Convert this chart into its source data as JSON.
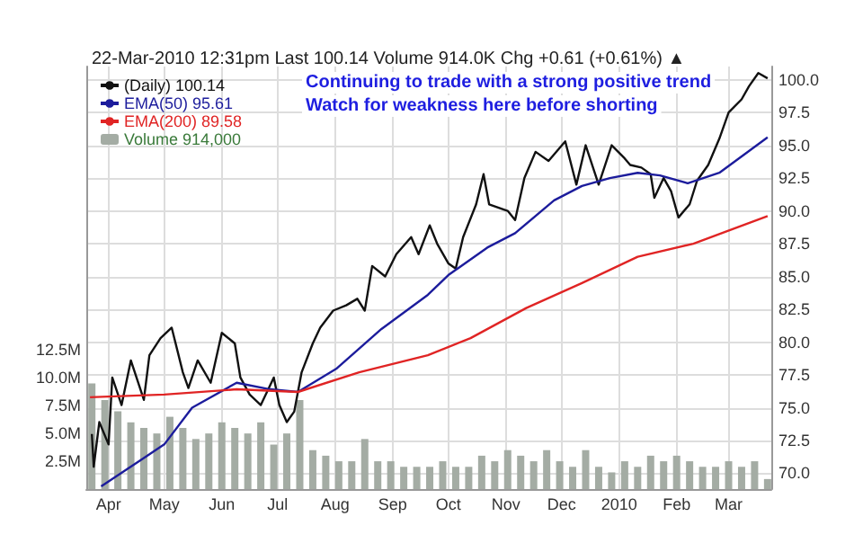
{
  "chart_data": {
    "type": "line",
    "subtitle": "22-Mar-2010 12:31pm Last 100.14 Volume 914.0K Chg +0.61 (+0.61%) ▲",
    "annotations": [
      "Continuing to trade with a strong positive trend",
      "Watch for weakness here before shorting"
    ],
    "xlim": [
      "2009-03-20",
      "2010-03-24"
    ],
    "xticks": [
      {
        "value": "2009-04-01",
        "label": "Apr"
      },
      {
        "value": "2009-05-01",
        "label": "May"
      },
      {
        "value": "2009-06-01",
        "label": "Jun"
      },
      {
        "value": "2009-07-01",
        "label": "Jul"
      },
      {
        "value": "2009-08-01",
        "label": "Aug"
      },
      {
        "value": "2009-09-01",
        "label": "Sep"
      },
      {
        "value": "2009-10-01",
        "label": "Oct"
      },
      {
        "value": "2009-11-01",
        "label": "Nov"
      },
      {
        "value": "2009-12-01",
        "label": "Dec"
      },
      {
        "value": "2010-01-01",
        "label": "2010"
      },
      {
        "value": "2010-02-01",
        "label": "Feb"
      },
      {
        "value": "2010-03-01",
        "label": "Mar"
      }
    ],
    "ylim": [
      68.8,
      101
    ],
    "yticks": [
      {
        "value": 70,
        "label": "70.0"
      },
      {
        "value": 72.5,
        "label": "72.5"
      },
      {
        "value": 75,
        "label": "75.0"
      },
      {
        "value": 77.5,
        "label": "77.5"
      },
      {
        "value": 80,
        "label": "80.0"
      },
      {
        "value": 82.5,
        "label": "82.5"
      },
      {
        "value": 85,
        "label": "85.0"
      },
      {
        "value": 87.5,
        "label": "87.5"
      },
      {
        "value": 90,
        "label": "90.0"
      },
      {
        "value": 92.5,
        "label": "92.5"
      },
      {
        "value": 95,
        "label": "95.0"
      },
      {
        "value": 97.5,
        "label": "97.5"
      },
      {
        "value": 100,
        "label": "100.0"
      }
    ],
    "y2lim": [
      0,
      38
    ],
    "y2ticks": [
      {
        "value": 2.5,
        "label": "2.5M"
      },
      {
        "value": 5,
        "label": "5.0M"
      },
      {
        "value": 7.5,
        "label": "7.5M"
      },
      {
        "value": 10,
        "label": "10.0M"
      },
      {
        "value": 12.5,
        "label": "12.5M"
      }
    ],
    "grid": true,
    "legend": "top left",
    "marker": "none",
    "line_style": "solid",
    "series": [
      {
        "name": "Volume 914,000",
        "type": "bar",
        "axis": "y2",
        "color": "#a4aca4",
        "x": [
          "2009-03-23",
          "2009-03-30",
          "2009-04-06",
          "2009-04-13",
          "2009-04-20",
          "2009-04-27",
          "2009-05-04",
          "2009-05-11",
          "2009-05-18",
          "2009-05-25",
          "2009-06-01",
          "2009-06-08",
          "2009-06-15",
          "2009-06-22",
          "2009-06-29",
          "2009-07-06",
          "2009-07-13",
          "2009-07-20",
          "2009-07-27",
          "2009-08-03",
          "2009-08-10",
          "2009-08-17",
          "2009-08-24",
          "2009-08-31",
          "2009-09-07",
          "2009-09-14",
          "2009-09-21",
          "2009-09-28",
          "2009-10-05",
          "2009-10-12",
          "2009-10-19",
          "2009-10-26",
          "2009-11-02",
          "2009-11-09",
          "2009-11-16",
          "2009-11-23",
          "2009-11-30",
          "2009-12-07",
          "2009-12-14",
          "2009-12-21",
          "2009-12-28",
          "2010-01-04",
          "2010-01-11",
          "2010-01-18",
          "2010-01-25",
          "2010-02-01",
          "2010-02-08",
          "2010-02-15",
          "2010-02-22",
          "2010-03-01",
          "2010-03-08",
          "2010-03-15",
          "2010-03-22"
        ],
        "values": [
          9.5,
          8,
          7,
          6,
          5.5,
          5,
          6.5,
          5.5,
          4.5,
          5,
          6,
          5.5,
          5,
          6,
          4,
          5,
          8,
          3.5,
          3,
          2.5,
          2.5,
          4.5,
          2.5,
          2.5,
          2,
          2,
          2,
          2.5,
          2,
          2,
          3,
          2.5,
          3.5,
          3,
          2.5,
          3.5,
          2.5,
          2,
          3.5,
          2,
          1.5,
          2.5,
          2,
          3,
          2.5,
          3,
          2.5,
          2,
          2,
          2.5,
          2,
          2.5,
          0.9
        ]
      },
      {
        "name": "(Daily) 100.14",
        "color": "#111111",
        "x": [
          "2009-03-23",
          "2009-03-24",
          "2009-03-27",
          "2009-04-01",
          "2009-04-03",
          "2009-04-08",
          "2009-04-13",
          "2009-04-20",
          "2009-04-23",
          "2009-04-29",
          "2009-05-05",
          "2009-05-11",
          "2009-05-14",
          "2009-05-19",
          "2009-05-26",
          "2009-06-01",
          "2009-06-08",
          "2009-06-11",
          "2009-06-16",
          "2009-06-22",
          "2009-06-29",
          "2009-07-02",
          "2009-07-06",
          "2009-07-10",
          "2009-07-14",
          "2009-07-20",
          "2009-07-24",
          "2009-07-31",
          "2009-08-07",
          "2009-08-13",
          "2009-08-17",
          "2009-08-21",
          "2009-08-28",
          "2009-09-03",
          "2009-09-11",
          "2009-09-15",
          "2009-09-21",
          "2009-09-25",
          "2009-10-01",
          "2009-10-05",
          "2009-10-09",
          "2009-10-16",
          "2009-10-20",
          "2009-10-23",
          "2009-11-02",
          "2009-11-06",
          "2009-11-11",
          "2009-11-17",
          "2009-11-24",
          "2009-12-03",
          "2009-12-09",
          "2009-12-14",
          "2009-12-21",
          "2009-12-28",
          "2010-01-04",
          "2010-01-07",
          "2010-01-13",
          "2010-01-18",
          "2010-01-20",
          "2010-01-25",
          "2010-01-29",
          "2010-02-02",
          "2010-02-08",
          "2010-02-12",
          "2010-02-18",
          "2010-02-24",
          "2010-03-01",
          "2010-03-08",
          "2010-03-12",
          "2010-03-17",
          "2010-03-22"
        ],
        "values": [
          73.0,
          70.5,
          73.9,
          72.2,
          77.3,
          75.2,
          78.6,
          75.6,
          79.0,
          80.3,
          81.1,
          77.7,
          76.5,
          78.6,
          76.9,
          80.7,
          79.9,
          77.3,
          76.0,
          75.2,
          77.3,
          75.2,
          73.9,
          74.7,
          77.7,
          79.9,
          81.1,
          82.4,
          82.8,
          83.3,
          82.4,
          85.8,
          85.0,
          86.7,
          88.0,
          86.7,
          88.9,
          87.5,
          86.0,
          85.6,
          88.0,
          90.5,
          92.8,
          90.5,
          90.0,
          89.3,
          92.5,
          94.5,
          93.8,
          95.3,
          92.0,
          95.0,
          92.0,
          95.0,
          94.0,
          93.5,
          93.3,
          92.8,
          91.0,
          92.5,
          91.5,
          89.5,
          90.5,
          92.3,
          93.5,
          95.5,
          97.5,
          98.5,
          99.5,
          100.5,
          100.1
        ]
      },
      {
        "name": "EMA(50) 95.61",
        "color": "#1c1c9c",
        "x": [
          "2009-03-28",
          "2009-05-01",
          "2009-05-16",
          "2009-06-09",
          "2009-06-27",
          "2009-07-12",
          "2009-08-02",
          "2009-08-26",
          "2009-09-20",
          "2009-10-01",
          "2009-10-22",
          "2009-11-06",
          "2009-11-27",
          "2009-12-12",
          "2009-12-27",
          "2010-01-11",
          "2010-01-23",
          "2010-02-07",
          "2010-02-24",
          "2010-03-22"
        ],
        "values": [
          69.0,
          72.2,
          75.0,
          76.9,
          76.4,
          76.2,
          78.0,
          81.0,
          83.6,
          85.1,
          87.2,
          88.3,
          90.8,
          91.9,
          92.5,
          92.9,
          92.7,
          92.1,
          92.9,
          95.6
        ]
      },
      {
        "name": "EMA(200) 89.58",
        "color": "#e02424",
        "x": [
          "2009-03-22",
          "2009-05-01",
          "2009-06-09",
          "2009-07-12",
          "2009-08-14",
          "2009-09-20",
          "2009-10-13",
          "2009-11-12",
          "2009-12-12",
          "2010-01-11",
          "2010-02-10",
          "2010-03-22"
        ],
        "values": [
          75.8,
          76.0,
          76.4,
          76.2,
          77.7,
          79.0,
          80.3,
          82.6,
          84.5,
          86.5,
          87.5,
          89.6
        ]
      }
    ]
  }
}
